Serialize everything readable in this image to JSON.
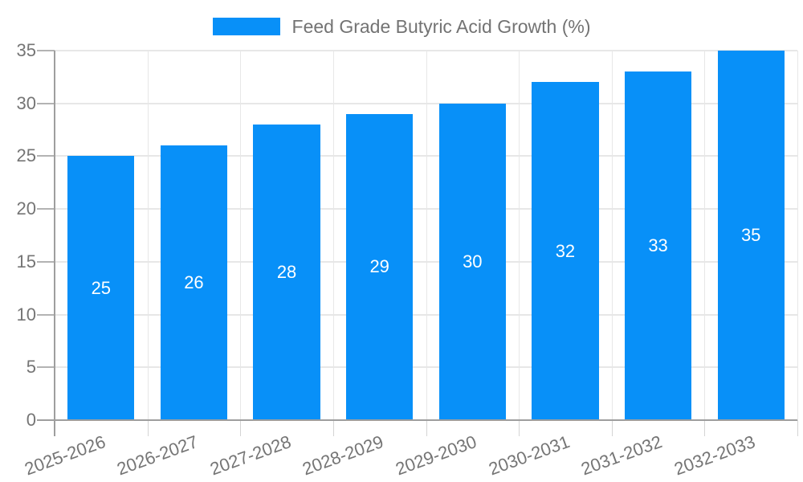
{
  "legend": {
    "label": "Feed Grade Butyric Acid Growth (%)"
  },
  "chart_data": {
    "type": "bar",
    "title": "Feed Grade Butyric Acid Growth (%)",
    "categories": [
      "2025-2026",
      "2026-2027",
      "2027-2028",
      "2028-2029",
      "2029-2030",
      "2030-2031",
      "2031-2032",
      "2032-2033"
    ],
    "values": [
      25,
      26,
      28,
      29,
      30,
      32,
      33,
      35
    ],
    "xlabel": "",
    "ylabel": "",
    "ylim": [
      0,
      35
    ],
    "y_ticks": [
      0,
      5,
      10,
      15,
      20,
      25,
      30,
      35
    ],
    "grid": true,
    "legend_position": "top",
    "bar_labels_inside": true,
    "x_label_rotation_deg": -20
  },
  "colors": {
    "bar": "#0890f8",
    "bar_label_text": "#ffffff",
    "axis_line": "#9e9e9e",
    "gridline": "#e7e7e7",
    "x_tick_mark": "#d4d4d4",
    "y_tick_mark": "#b3b3b3",
    "tick_text": "#757575",
    "legend_text": "#737373",
    "background": "#ffffff"
  }
}
